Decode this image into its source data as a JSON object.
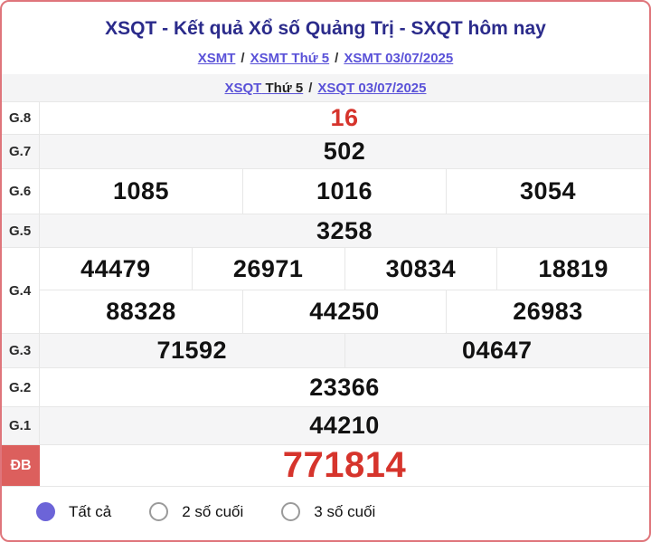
{
  "header": {
    "title": "XSQT - Kết quả Xổ số Quảng Trị - SXQT hôm nay",
    "sep": "/",
    "nav_xsmt": {
      "home": "XSMT",
      "day": "XSMT Thứ 5",
      "date": "XSMT 03/07/2025"
    },
    "nav_xsqt": {
      "home": "XSQT",
      "day": "Thứ 5",
      "date": "XSQT 03/07/2025"
    }
  },
  "results": {
    "rows": [
      {
        "label": "G.8",
        "groups": [
          [
            "16"
          ]
        ]
      },
      {
        "label": "G.7",
        "groups": [
          [
            "502"
          ]
        ]
      },
      {
        "label": "G.6",
        "groups": [
          [
            "1085",
            "1016",
            "3054"
          ]
        ]
      },
      {
        "label": "G.5",
        "groups": [
          [
            "3258"
          ]
        ]
      },
      {
        "label": "G.4",
        "groups": [
          [
            "44479",
            "26971",
            "30834",
            "18819"
          ],
          [
            "88328",
            "44250",
            "26983"
          ]
        ]
      },
      {
        "label": "G.3",
        "groups": [
          [
            "71592",
            "04647"
          ]
        ]
      },
      {
        "label": "G.2",
        "groups": [
          [
            "23366"
          ]
        ]
      },
      {
        "label": "G.1",
        "groups": [
          [
            "44210"
          ]
        ]
      },
      {
        "label": "ĐB",
        "groups": [
          [
            "771814"
          ]
        ]
      }
    ]
  },
  "filters": {
    "options": [
      {
        "label": "Tất cả",
        "selected": true
      },
      {
        "label": "2 số cuối",
        "selected": false
      },
      {
        "label": "3 số cuối",
        "selected": false
      }
    ]
  },
  "colors": {
    "accent_red": "#d6342c",
    "special_prize_bg": "#dc5f5d",
    "link_blue": "#5a52d8",
    "title_navy": "#2b2b8b",
    "radio_purple": "#6c64d8",
    "card_border": "#df757b",
    "row_gray": "#f5f5f6"
  }
}
